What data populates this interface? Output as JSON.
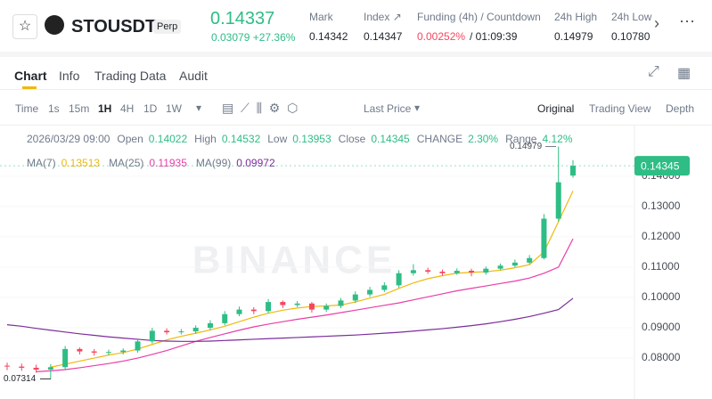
{
  "header": {
    "symbol": "STOUSDT",
    "badge": "Perp",
    "price": "0.14337",
    "change": "0.03079 +27.36%",
    "stats": [
      {
        "label": "Mark",
        "value": "0.14342"
      },
      {
        "label": "Index ↗",
        "value": "0.14347"
      },
      {
        "label": "Funding (4h) / Countdown",
        "value": "0.00252%",
        "value2": "/ 01:09:39"
      },
      {
        "label": "24h High",
        "value": "0.14979"
      },
      {
        "label": "24h Low",
        "value": "0.10780"
      }
    ]
  },
  "tabs": [
    "Chart",
    "Info",
    "Trading Data",
    "Audit"
  ],
  "toolbar": {
    "left": [
      "Time",
      "1s",
      "15m",
      "1H",
      "4H",
      "1D",
      "1W"
    ],
    "price_mode": "Last Price",
    "right": [
      "Original",
      "Trading View",
      "Depth"
    ]
  },
  "legend": {
    "time": "2026/03/29 09:00",
    "items": [
      {
        "label": "Open",
        "value": "0.14022"
      },
      {
        "label": "High",
        "value": "0.14532"
      },
      {
        "label": "Low",
        "value": "0.13953"
      },
      {
        "label": "Close",
        "value": "0.14345"
      },
      {
        "label": "CHANGE",
        "value": "2.30%"
      },
      {
        "label": "Range",
        "value": "4.12%"
      }
    ],
    "ma": [
      {
        "label": "MA(7)",
        "value": "0.13513"
      },
      {
        "label": "MA(25)",
        "value": "0.11935"
      },
      {
        "label": "MA(99)",
        "value": "0.09972"
      }
    ]
  },
  "chart_data": {
    "type": "candlestick",
    "watermark": "BINANCE",
    "up_color": "#2ebd85",
    "down_color": "#f6465d",
    "ylim": [
      0.0665,
      0.157
    ],
    "yticks": [
      {
        "value": 0.08,
        "label": "0.08000"
      },
      {
        "value": 0.09,
        "label": "0.09000"
      },
      {
        "value": 0.1,
        "label": "0.10000"
      },
      {
        "value": 0.11,
        "label": "0.11000"
      },
      {
        "value": 0.12,
        "label": "0.12000"
      },
      {
        "value": 0.13,
        "label": "0.13000"
      },
      {
        "value": 0.14,
        "label": "0.14000"
      }
    ],
    "last_price": {
      "value": 0.14345,
      "label": "0.14345"
    },
    "high_label": {
      "value": 0.14979,
      "label": "0.14979"
    },
    "low_label": {
      "value": 0.07314,
      "label": "0.07314"
    },
    "open": [
      0.0775,
      0.0772,
      0.0768,
      0.0762,
      0.077,
      0.083,
      0.0822,
      0.0818,
      0.082,
      0.0825,
      0.0855,
      0.089,
      0.0885,
      0.0888,
      0.09,
      0.0915,
      0.0945,
      0.096,
      0.0955,
      0.0985,
      0.0975,
      0.098,
      0.096,
      0.0972,
      0.099,
      0.101,
      0.1025,
      0.104,
      0.108,
      0.109,
      0.1085,
      0.108,
      0.1088,
      0.1082,
      0.1095,
      0.1105,
      0.1115,
      0.113,
      0.126,
      0.14022
    ],
    "high": [
      0.0785,
      0.0782,
      0.0778,
      0.078,
      0.084,
      0.0835,
      0.083,
      0.0828,
      0.0832,
      0.0865,
      0.09,
      0.0898,
      0.0896,
      0.0908,
      0.0925,
      0.0955,
      0.097,
      0.0968,
      0.0995,
      0.099,
      0.0988,
      0.0985,
      0.098,
      0.0998,
      0.102,
      0.1035,
      0.105,
      0.109,
      0.111,
      0.1098,
      0.1092,
      0.1096,
      0.1095,
      0.1102,
      0.1112,
      0.1125,
      0.114,
      0.1275,
      0.14979,
      0.14532
    ],
    "low": [
      0.076,
      0.0758,
      0.0752,
      0.07314,
      0.076,
      0.0812,
      0.0808,
      0.081,
      0.0812,
      0.0818,
      0.0848,
      0.0878,
      0.0878,
      0.088,
      0.0892,
      0.0908,
      0.0938,
      0.0945,
      0.0948,
      0.0965,
      0.0968,
      0.095,
      0.0952,
      0.0965,
      0.0982,
      0.1002,
      0.1018,
      0.1032,
      0.1072,
      0.1078,
      0.1072,
      0.1075,
      0.107,
      0.1075,
      0.109,
      0.11,
      0.111,
      0.1125,
      0.125,
      0.13953
    ],
    "close": [
      0.0772,
      0.0768,
      0.0762,
      0.077,
      0.083,
      0.0822,
      0.0818,
      0.082,
      0.0825,
      0.0855,
      0.089,
      0.0885,
      0.0888,
      0.09,
      0.0915,
      0.0945,
      0.096,
      0.0955,
      0.0985,
      0.0975,
      0.098,
      0.096,
      0.0972,
      0.099,
      0.101,
      0.1025,
      0.104,
      0.108,
      0.109,
      0.1085,
      0.108,
      0.1088,
      0.1082,
      0.1095,
      0.1105,
      0.1115,
      0.113,
      0.126,
      0.138,
      0.14345
    ],
    "series": [
      {
        "name": "MA(7)",
        "color": "#f0b90b",
        "values": [
          null,
          null,
          null,
          0.077,
          0.078,
          0.079,
          0.08,
          0.081,
          0.0818,
          0.083,
          0.0845,
          0.086,
          0.0872,
          0.0882,
          0.0893,
          0.0905,
          0.092,
          0.0935,
          0.0948,
          0.0958,
          0.0965,
          0.097,
          0.0972,
          0.0975,
          0.0985,
          0.0998,
          0.101,
          0.103,
          0.1048,
          0.1062,
          0.1072,
          0.108,
          0.1083,
          0.1085,
          0.109,
          0.1098,
          0.1108,
          0.115,
          0.125,
          0.13513
        ]
      },
      {
        "name": "MA(25)",
        "color": "#e83ea8",
        "values": [
          null,
          null,
          0.0755,
          0.0758,
          0.0762,
          0.0768,
          0.0775,
          0.0782,
          0.079,
          0.08,
          0.0812,
          0.0825,
          0.084,
          0.0855,
          0.0868,
          0.088,
          0.0892,
          0.0903,
          0.0912,
          0.092,
          0.0928,
          0.0935,
          0.0942,
          0.095,
          0.0958,
          0.0966,
          0.0974,
          0.0982,
          0.0992,
          0.1002,
          0.1012,
          0.1022,
          0.103,
          0.1038,
          0.1046,
          0.1054,
          0.1064,
          0.108,
          0.11,
          0.11935
        ]
      },
      {
        "name": "MA(99)",
        "color": "#7b2d9b",
        "values": [
          0.091,
          0.0905,
          0.0898,
          0.0892,
          0.0886,
          0.088,
          0.0875,
          0.087,
          0.0866,
          0.0862,
          0.0858,
          0.0856,
          0.0855,
          0.0855,
          0.0856,
          0.0858,
          0.086,
          0.0862,
          0.0864,
          0.0866,
          0.0868,
          0.087,
          0.0872,
          0.0874,
          0.0876,
          0.0879,
          0.0882,
          0.0885,
          0.0889,
          0.0893,
          0.0897,
          0.0902,
          0.0907,
          0.0913,
          0.092,
          0.0928,
          0.0937,
          0.0948,
          0.096,
          0.09972
        ]
      }
    ]
  }
}
